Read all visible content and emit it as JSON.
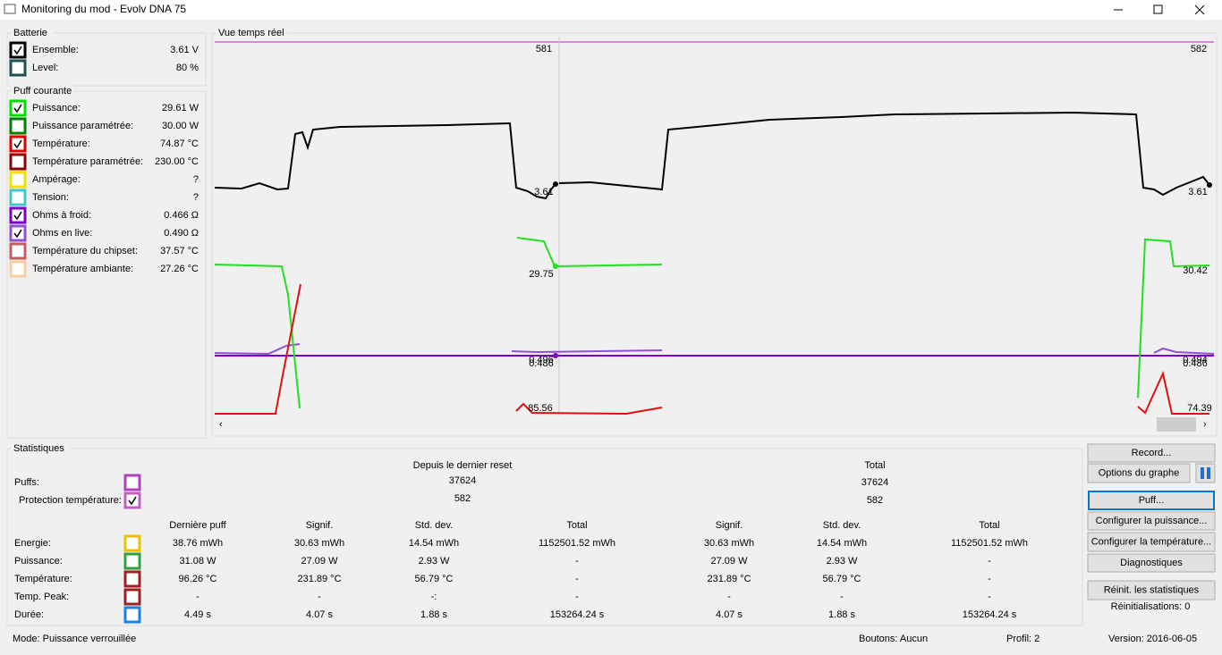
{
  "window": {
    "title": "Monitoring du mod - Evolv DNA 75"
  },
  "battery": {
    "title": "Batterie",
    "rows": [
      {
        "label": "Ensemble:",
        "value": "3.61 V",
        "checked": true,
        "color": "#000000"
      },
      {
        "label": "Level:",
        "value": "80 %",
        "checked": false,
        "color": "#1f4f4f"
      }
    ]
  },
  "puff": {
    "title": "Puff courante",
    "rows": [
      {
        "label": "Puissance:",
        "value": "29.61 W",
        "checked": true,
        "color": "#00e000"
      },
      {
        "label": "Puissance paramétrée:",
        "value": "30.00 W",
        "checked": false,
        "color": "#008000"
      },
      {
        "label": "Température:",
        "value": "74.87 °C",
        "checked": true,
        "color": "#e00000"
      },
      {
        "label": "Température paramétrée:",
        "value": "230.00 °C",
        "checked": false,
        "color": "#900000"
      },
      {
        "label": "Ampérage:",
        "value": "?",
        "checked": false,
        "color": "#f0e000"
      },
      {
        "label": "Tension:",
        "value": "?",
        "checked": false,
        "color": "#40c8c8"
      },
      {
        "label": "Ohms à froid:",
        "value": "0.466 Ω",
        "checked": true,
        "color": "#8000c0"
      },
      {
        "label": "Ohms en live:",
        "value": "0.490 Ω",
        "checked": true,
        "color": "#9050d0"
      },
      {
        "label": "Température du chipset:",
        "value": "37.57 °C",
        "checked": false,
        "color": "#c06060"
      },
      {
        "label": "Température ambiante:",
        "value": "27.26 °C",
        "checked": false,
        "color": "#f5cfa0"
      }
    ]
  },
  "realtime": {
    "title": "Vue temps réel",
    "labels": [
      "581",
      "582",
      "3.61",
      "3.61",
      "29.75",
      "30.42",
      "0.496",
      "0.486",
      "0.494",
      "0.486",
      "85.56",
      "74.39"
    ]
  },
  "stats": {
    "title": "Statistiques",
    "since_reset": "Depuis le dernier reset",
    "total": "Total",
    "counters": [
      {
        "label": "Puffs:",
        "checked": false,
        "color": "#b040c0",
        "since_reset": "37624",
        "total": "37624"
      },
      {
        "label": "Protection température:",
        "checked": true,
        "color": "#c060c0",
        "since_reset": "582",
        "total": "582"
      }
    ],
    "headers": [
      "Dernière puff",
      "Signif.",
      "Std. dev.",
      "Total",
      "Signif.",
      "Std. dev.",
      "Total"
    ],
    "rows": [
      {
        "label": "Energie:",
        "checked": false,
        "color": "#f0c000",
        "values": [
          "38.76 mWh",
          "30.63 mWh",
          "14.54 mWh",
          "1152501.52 mWh",
          "30.63 mWh",
          "14.54 mWh",
          "1152501.52 mWh"
        ]
      },
      {
        "label": "Puissance:",
        "checked": false,
        "color": "#30a040",
        "values": [
          "31.08 W",
          "27.09 W",
          "2.93 W",
          "-",
          "27.09 W",
          "2.93 W",
          "-"
        ]
      },
      {
        "label": "Température:",
        "checked": false,
        "color": "#a02020",
        "values": [
          "96.26 °C",
          "231.89 °C",
          "56.79 °C",
          "-",
          "231.89 °C",
          "56.79 °C",
          "-"
        ]
      },
      {
        "label": "Temp. Peak:",
        "checked": false,
        "color": "#a02020",
        "values": [
          "-",
          "-",
          "-:",
          "-",
          "-",
          "-",
          "-"
        ]
      },
      {
        "label": "Durée:",
        "checked": false,
        "color": "#2080e0",
        "values": [
          "4.49 s",
          "4.07 s",
          "1.88 s",
          "153264.24 s",
          "4.07 s",
          "1.88 s",
          "153264.24 s"
        ]
      }
    ]
  },
  "buttons": {
    "record": "Record...",
    "options": "Options du graphe",
    "puff": "Puff...",
    "power": "Configurer la puissance...",
    "temperature": "Configurer la température...",
    "diagnostics": "Diagnostiques",
    "reset": "Réinit. les statistiques",
    "resets": "Réinitialisations: 0"
  },
  "status": {
    "mode": "Mode: Puissance verrouillée",
    "buttons": "Boutons: Aucun",
    "profile": "Profil: 2",
    "version": "Version: 2016-06-05"
  }
}
